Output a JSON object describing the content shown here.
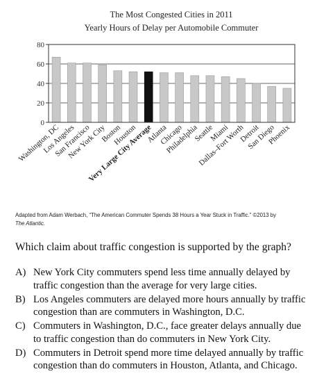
{
  "chart_data": {
    "type": "bar",
    "title": "The Most Congested Cities in 2011",
    "subtitle": "Yearly Hours of Delay per Automobile Commuter",
    "xlabel": "",
    "ylabel": "",
    "ylim": [
      0,
      80
    ],
    "yticks": [
      "0",
      "20",
      "40",
      "60",
      "80"
    ],
    "grid": true,
    "categories": [
      "Washington, DC",
      "Los Angeles",
      "San Francisco",
      "New York City",
      "Boston",
      "Houston",
      "Very Large City Average",
      "Atlanta",
      "Chicago",
      "Philadelphia",
      "Seattle",
      "Miami",
      "Dallas–Fort Worth",
      "Detroit",
      "San Diego",
      "Phoenix"
    ],
    "values": [
      67,
      61,
      61,
      59,
      53,
      52,
      52,
      51,
      51,
      48,
      48,
      47,
      45,
      40,
      37,
      35
    ],
    "highlight_index": 6,
    "colors": {
      "bar": "#c8c8c8",
      "highlight": "#111111",
      "grid": "#333333"
    }
  },
  "source": {
    "prefix": "Adapted from Adam Werbach, “The American Commuter Spends 38 Hours a Year Stuck in Traffic.” ©2013 by",
    "publication": "The Atlantic."
  },
  "question": "Which claim about traffic congestion is supported by the graph?",
  "choices": [
    {
      "letter": "A)",
      "text": "New York City commuters spend less time annually delayed by traffic congestion than the average for very large cities."
    },
    {
      "letter": "B)",
      "text": "Los Angeles commuters are delayed more hours annually by traffic congestion than are commuters in Washington, D.C."
    },
    {
      "letter": "C)",
      "text": "Commuters in Washington, D.C., face greater delays annually due to traffic congestion than do commuters in New York City."
    },
    {
      "letter": "D)",
      "text": "Commuters in Detroit spend more time delayed annually by traffic congestion than do commuters in Houston, Atlanta, and Chicago."
    }
  ]
}
